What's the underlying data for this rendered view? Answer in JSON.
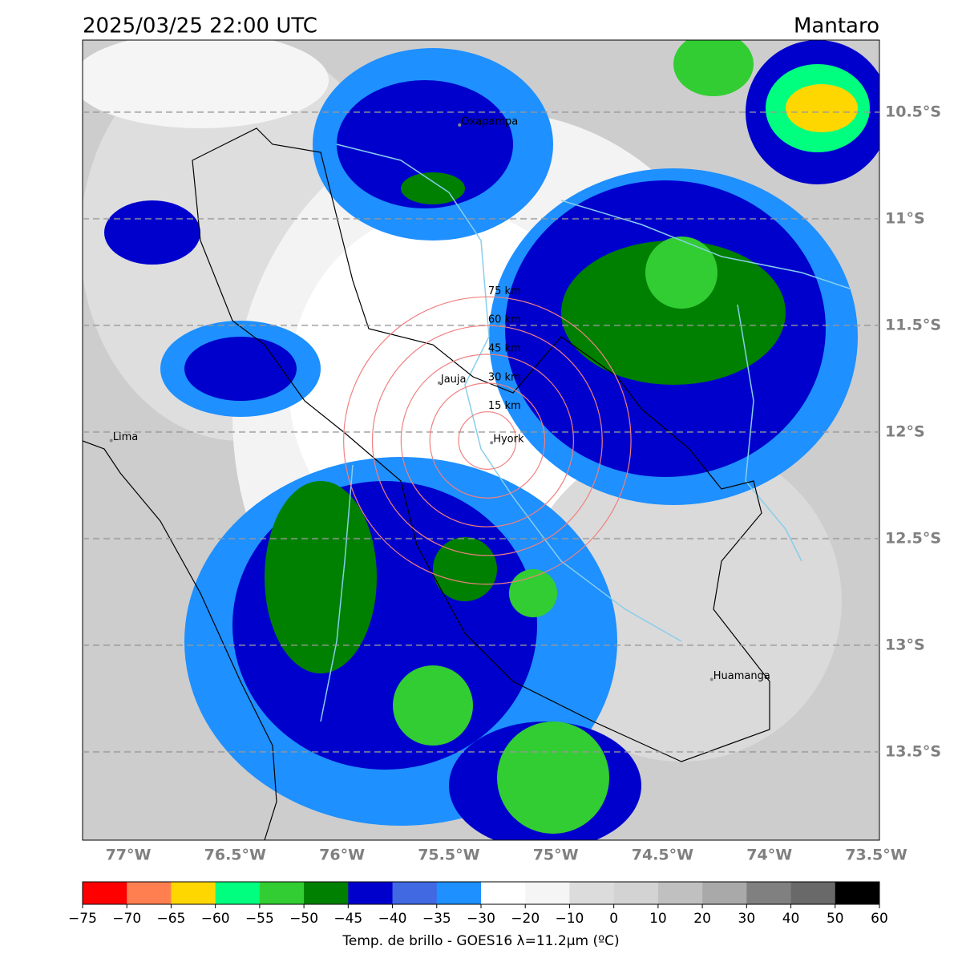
{
  "header": {
    "title": "2025/03/25 22:00 UTC",
    "region": "Mantaro"
  },
  "map": {
    "type": "map",
    "xlim": [
      -77.214,
      -73.485
    ],
    "ylim": [
      -13.914,
      -10.162
    ],
    "xticks": [
      {
        "value": -77,
        "label": "77°W"
      },
      {
        "value": -76.5,
        "label": "76.5°W"
      },
      {
        "value": -76,
        "label": "76°W"
      },
      {
        "value": -75.5,
        "label": "75.5°W"
      },
      {
        "value": -75,
        "label": "75°W"
      },
      {
        "value": -74.5,
        "label": "74.5°W"
      },
      {
        "value": -74,
        "label": "74°W"
      },
      {
        "value": -73.5,
        "label": "73.5°W"
      }
    ],
    "yticks": [
      {
        "value": -10.5,
        "label": "10.5°S"
      },
      {
        "value": -11,
        "label": "11°S"
      },
      {
        "value": -11.5,
        "label": "11.5°S"
      },
      {
        "value": -12,
        "label": "12°S"
      },
      {
        "value": -12.5,
        "label": "12.5°S"
      },
      {
        "value": -13,
        "label": "13°S"
      },
      {
        "value": -13.5,
        "label": "13.5°S"
      }
    ],
    "grid": true,
    "rings": {
      "center": [
        -75.32,
        -12.04
      ],
      "color": "#f08080",
      "radii": [
        {
          "value": 15,
          "label": "15 km"
        },
        {
          "value": 30,
          "label": "30 km"
        },
        {
          "value": 45,
          "label": "45 km"
        },
        {
          "value": 60,
          "label": "60 km"
        },
        {
          "value": 75,
          "label": "75 km"
        }
      ]
    },
    "places": [
      {
        "name": "Oxapampa",
        "lon": -75.45,
        "lat": -10.56
      },
      {
        "name": "Jauja",
        "lon": -75.545,
        "lat": -11.77
      },
      {
        "name": "Lima",
        "lon": -77.08,
        "lat": -12.04
      },
      {
        "name": "Hyork",
        "lon": -75.3,
        "lat": -12.05
      },
      {
        "name": "Huamanga",
        "lon": -74.27,
        "lat": -13.16
      }
    ],
    "colorbar": {
      "label": "Temp. de brillo - GOES16 λ=11.2μm (ºC)",
      "bounds": [
        {
          "value": -75,
          "label": "−75"
        },
        {
          "value": -70,
          "label": "−70"
        },
        {
          "value": -65,
          "label": "−65"
        },
        {
          "value": -60,
          "label": "−60"
        },
        {
          "value": -55,
          "label": "−55"
        },
        {
          "value": -50,
          "label": "−50"
        },
        {
          "value": -45,
          "label": "−45"
        },
        {
          "value": -40,
          "label": "−40"
        },
        {
          "value": -35,
          "label": "−35"
        },
        {
          "value": -30,
          "label": "−30"
        },
        {
          "value": -20,
          "label": "−20"
        },
        {
          "value": -10,
          "label": "−10"
        },
        0,
        10,
        20,
        30,
        40,
        50,
        60
      ],
      "colors": [
        "#ff0000",
        "#ff7f50",
        "#ffd700",
        "#00ff7f",
        "#32cd32",
        "#008000",
        "#0000cd",
        "#4169e1",
        "#1e90ff",
        "#ffffff",
        "#f5f5f5",
        "#dcdcdc",
        "#d3d3d3",
        "#c0c0c0",
        "#a9a9a9",
        "#808080",
        "#696969",
        "#000000"
      ]
    }
  }
}
